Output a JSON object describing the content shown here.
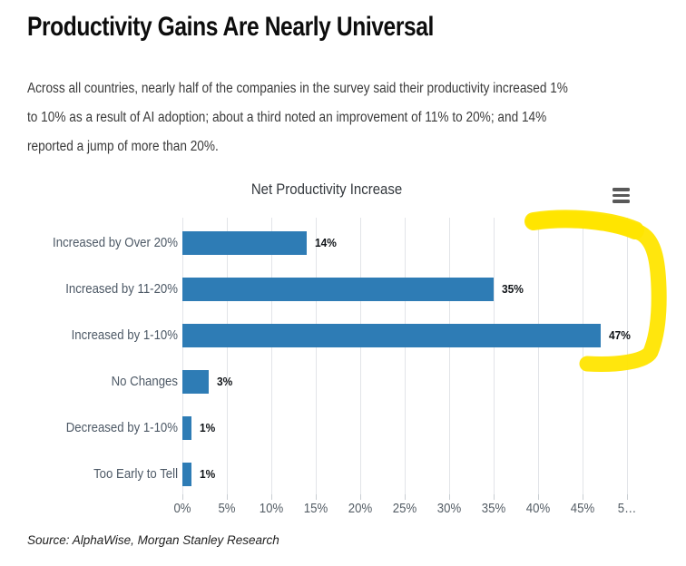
{
  "page": {
    "title": "Productivity Gains Are Nearly Universal",
    "intro_lines": [
      "Across all countries, nearly half of the companies in the survey said their productivity increased 1%",
      "to 10% as a result of AI adoption; about a third noted an improvement of 11% to 20%; and 14%",
      "reported a jump of more than 20%."
    ],
    "source": "Source: AlphaWise, Morgan Stanley Research"
  },
  "chart_data": {
    "type": "bar",
    "orientation": "horizontal",
    "title": "Net Productivity Increase",
    "categories": [
      "Increased by Over 20%",
      "Increased by 11-20%",
      "Increased by 1-10%",
      "No Changes",
      "Decreased by 1-10%",
      "Too Early to Tell"
    ],
    "values": [
      14,
      35,
      47,
      3,
      1,
      1
    ],
    "value_labels": [
      "14%",
      "35%",
      "47%",
      "3%",
      "1%",
      "1%"
    ],
    "x_tick_labels": [
      "0%",
      "5%",
      "10%",
      "15%",
      "20%",
      "25%",
      "30%",
      "35%",
      "40%",
      "45%",
      "5…"
    ],
    "xlim": [
      0,
      50
    ],
    "grid": true,
    "legend": "none",
    "bar_color": "#2E7CB5",
    "annotation": "yellow-highlighter-bracket-around-top-three-bars"
  },
  "colors": {
    "accent_blue": "#2E7CB5",
    "highlight_yellow": "#FFE500",
    "gridline": "#e2e4e8"
  }
}
